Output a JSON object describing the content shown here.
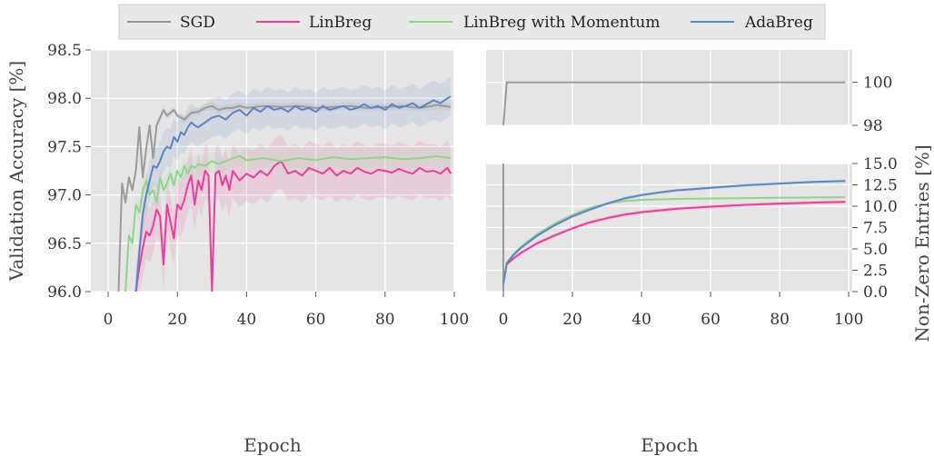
{
  "colors": {
    "SGD": "#9a9a9a",
    "LinBreg": "#ef3b9c",
    "LinBreg with Momentum": "#8fd68a",
    "AdaBreg": "#5b85c4",
    "panel_bg": "#e5e5e5",
    "grid": "#ffffff"
  },
  "chart_data": [
    {
      "type": "line",
      "xlabel": "Epoch",
      "ylabel": "Validation Accuracy [%]",
      "xlim": [
        -5,
        100
      ],
      "ylim": [
        96.0,
        98.5
      ],
      "xticks": [
        0,
        20,
        40,
        60,
        80,
        100
      ],
      "yticks": [
        96.0,
        96.5,
        97.0,
        97.5,
        98.0,
        98.5
      ],
      "ytick_labels": [
        "96.0",
        "96.5",
        "97.0",
        "97.5",
        "98.0",
        "98.5"
      ],
      "grid": true,
      "series": [
        {
          "name": "SGD",
          "x": [
            3,
            4,
            5,
            6,
            7,
            8,
            9,
            10,
            11,
            12,
            13,
            14,
            15,
            16,
            17,
            18,
            19,
            20,
            22,
            24,
            26,
            28,
            30,
            32,
            34,
            36,
            38,
            40,
            45,
            50,
            55,
            60,
            65,
            70,
            75,
            80,
            85,
            90,
            95,
            99
          ],
          "y": [
            96.0,
            97.12,
            96.92,
            97.18,
            97.05,
            97.25,
            97.7,
            97.18,
            97.48,
            97.72,
            97.38,
            97.72,
            97.8,
            97.88,
            97.82,
            97.85,
            97.88,
            97.82,
            97.78,
            97.85,
            97.86,
            97.9,
            97.92,
            97.88,
            97.9,
            97.9,
            97.92,
            97.9,
            97.92,
            97.91,
            97.92,
            97.9,
            97.91,
            97.92,
            97.9,
            97.91,
            97.92,
            97.9,
            97.93,
            97.91
          ]
        },
        {
          "name": "LinBreg",
          "x": [
            8,
            9,
            10,
            11,
            12,
            13,
            14,
            15,
            16,
            17,
            18,
            19,
            20,
            21,
            22,
            23,
            24,
            25,
            26,
            27,
            28,
            29,
            30,
            31,
            32,
            33,
            34,
            35,
            36,
            38,
            40,
            42,
            44,
            46,
            48,
            50,
            52,
            54,
            56,
            58,
            60,
            62,
            64,
            66,
            68,
            70,
            72,
            74,
            76,
            78,
            80,
            82,
            84,
            86,
            88,
            90,
            92,
            94,
            96,
            98,
            99
          ],
          "y": [
            96.0,
            96.25,
            96.45,
            96.62,
            96.58,
            96.68,
            96.85,
            96.78,
            96.28,
            96.9,
            96.72,
            96.55,
            96.9,
            96.85,
            96.95,
            97.1,
            97.2,
            96.9,
            97.15,
            97.05,
            97.25,
            97.2,
            96.0,
            97.22,
            97.25,
            97.1,
            97.2,
            97.05,
            97.25,
            97.15,
            97.22,
            97.18,
            97.25,
            97.2,
            97.3,
            97.35,
            97.22,
            97.25,
            97.2,
            97.28,
            97.25,
            97.22,
            97.28,
            97.2,
            97.25,
            97.22,
            97.28,
            97.24,
            97.22,
            97.26,
            97.25,
            97.23,
            97.27,
            97.24,
            97.22,
            97.28,
            97.24,
            97.25,
            97.22,
            97.28,
            97.22
          ]
        },
        {
          "name": "LinBreg with Momentum",
          "x": [
            5,
            6,
            7,
            8,
            9,
            10,
            11,
            12,
            13,
            14,
            15,
            16,
            17,
            18,
            19,
            20,
            21,
            22,
            23,
            24,
            25,
            26,
            28,
            30,
            32,
            34,
            36,
            38,
            40,
            45,
            50,
            55,
            60,
            65,
            70,
            75,
            80,
            85,
            90,
            95,
            99
          ],
          "y": [
            96.0,
            96.58,
            96.5,
            96.9,
            96.82,
            97.05,
            97.15,
            97.0,
            97.05,
            96.92,
            97.18,
            97.05,
            97.12,
            97.22,
            97.1,
            97.25,
            97.18,
            97.3,
            97.22,
            97.3,
            97.28,
            97.32,
            97.3,
            97.35,
            97.32,
            97.35,
            97.38,
            97.4,
            97.36,
            97.38,
            97.35,
            97.38,
            97.36,
            97.39,
            97.37,
            97.38,
            97.39,
            97.37,
            97.38,
            97.4,
            97.38
          ]
        },
        {
          "name": "AdaBreg",
          "x": [
            8,
            9,
            10,
            11,
            12,
            13,
            14,
            15,
            16,
            17,
            18,
            19,
            20,
            21,
            22,
            23,
            24,
            25,
            26,
            28,
            30,
            32,
            34,
            36,
            38,
            40,
            42,
            44,
            46,
            48,
            50,
            52,
            54,
            56,
            58,
            60,
            62,
            64,
            66,
            68,
            70,
            72,
            74,
            76,
            78,
            80,
            82,
            84,
            86,
            88,
            90,
            92,
            94,
            96,
            98,
            99
          ],
          "y": [
            96.0,
            96.4,
            96.8,
            97.0,
            97.15,
            97.3,
            97.28,
            97.35,
            97.45,
            97.5,
            97.48,
            97.6,
            97.55,
            97.65,
            97.62,
            97.7,
            97.75,
            97.72,
            97.7,
            97.75,
            97.8,
            97.82,
            97.78,
            97.85,
            97.88,
            97.82,
            97.9,
            97.86,
            97.92,
            97.88,
            97.9,
            97.86,
            97.92,
            97.88,
            97.9,
            97.86,
            97.92,
            97.88,
            97.9,
            97.92,
            97.88,
            97.9,
            97.94,
            97.9,
            97.92,
            97.88,
            97.94,
            97.9,
            97.92,
            97.95,
            97.9,
            97.94,
            97.98,
            97.95,
            98.0,
            98.02
          ]
        }
      ]
    },
    {
      "type": "line",
      "xlabel": "Epoch",
      "ylabel": "Non-Zero Entries [%]",
      "broken_axis": true,
      "upper_ylim": [
        98,
        101.5
      ],
      "upper_yticks": [
        98,
        100
      ],
      "lower_ylim": [
        0,
        15
      ],
      "lower_yticks": [
        0.0,
        2.5,
        5.0,
        7.5,
        10.0,
        12.5,
        15.0
      ],
      "lower_ytick_labels": [
        "0.0",
        "2.5",
        "5.0",
        "7.5",
        "10.0",
        "12.5",
        "15.0"
      ],
      "xlim": [
        -5,
        101
      ],
      "xticks": [
        0,
        20,
        40,
        60,
        80,
        100
      ],
      "grid": true,
      "series": [
        {
          "name": "SGD",
          "x": [
            0,
            1,
            99
          ],
          "y": [
            0,
            100,
            100
          ]
        },
        {
          "name": "LinBreg",
          "x": [
            0,
            1,
            3,
            5,
            10,
            15,
            20,
            25,
            30,
            35,
            40,
            50,
            60,
            70,
            80,
            90,
            99
          ],
          "y": [
            0.9,
            3.2,
            3.9,
            4.5,
            5.7,
            6.6,
            7.4,
            8.1,
            8.6,
            9.0,
            9.3,
            9.7,
            9.95,
            10.15,
            10.3,
            10.42,
            10.5
          ]
        },
        {
          "name": "LinBreg with Momentum",
          "x": [
            0,
            1,
            3,
            5,
            10,
            15,
            20,
            25,
            30,
            35,
            40,
            50,
            60,
            70,
            80,
            90,
            99
          ],
          "y": [
            0.9,
            3.4,
            4.4,
            5.2,
            6.8,
            8.0,
            9.0,
            9.8,
            10.3,
            10.6,
            10.75,
            10.85,
            10.9,
            10.95,
            11.0,
            11.02,
            11.05
          ]
        },
        {
          "name": "AdaBreg",
          "x": [
            0,
            1,
            3,
            5,
            10,
            15,
            20,
            25,
            30,
            35,
            40,
            45,
            50,
            55,
            60,
            65,
            70,
            80,
            90,
            99
          ],
          "y": [
            0.9,
            3.3,
            4.3,
            5.1,
            6.6,
            7.8,
            8.8,
            9.6,
            10.3,
            10.9,
            11.3,
            11.6,
            11.85,
            12.0,
            12.15,
            12.3,
            12.45,
            12.65,
            12.85,
            12.95
          ]
        }
      ]
    }
  ]
}
